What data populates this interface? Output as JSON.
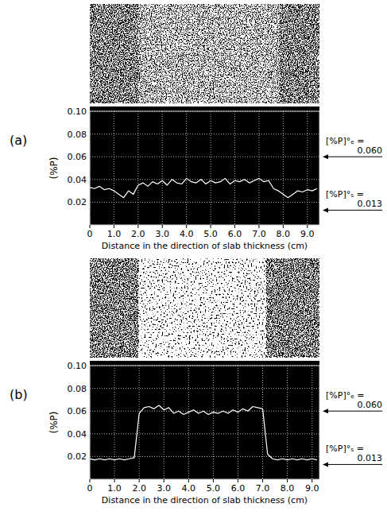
{
  "chart_data": [
    {
      "type": "line",
      "title": "(a)",
      "color": "#ffffff",
      "grid": true,
      "x_label": "Distance in the direction of slab thickness (cm)",
      "y_label": "(%P)",
      "xlim": [
        0,
        9.5
      ],
      "ylim": [
        0,
        0.1
      ],
      "xticks": [
        0,
        {
          "value": 1,
          "label": "1.0"
        },
        {
          "value": 2,
          "label": "2.0"
        },
        {
          "value": 3,
          "label": "3.0"
        },
        {
          "value": 4,
          "label": "4.0"
        },
        {
          "value": 5,
          "label": "5.0"
        },
        {
          "value": 6,
          "label": "6.0"
        },
        {
          "value": 7,
          "label": "7.0"
        },
        {
          "value": 8,
          "label": "8.0"
        },
        {
          "value": 9,
          "label": "9.0"
        }
      ],
      "yticks": [
        0.02,
        0.04,
        0.06,
        0.08,
        {
          "value": 0.1,
          "label": "0.10"
        }
      ],
      "x": [
        0,
        0.2,
        0.4,
        0.6,
        0.8,
        1.0,
        1.2,
        1.4,
        1.6,
        1.8,
        2.0,
        2.2,
        2.4,
        2.6,
        2.8,
        3.0,
        3.2,
        3.4,
        3.6,
        3.8,
        4.0,
        4.2,
        4.4,
        4.6,
        4.8,
        5.0,
        5.2,
        5.4,
        5.6,
        5.8,
        6.0,
        6.2,
        6.4,
        6.6,
        6.8,
        7.0,
        7.2,
        7.4,
        7.6,
        7.8,
        8.0,
        8.2,
        8.4,
        8.6,
        8.8,
        9.0,
        9.2,
        9.4
      ],
      "values": [
        0.033,
        0.032,
        0.034,
        0.031,
        0.032,
        0.03,
        0.027,
        0.024,
        0.03,
        0.027,
        0.035,
        0.037,
        0.034,
        0.038,
        0.036,
        0.039,
        0.035,
        0.04,
        0.037,
        0.036,
        0.041,
        0.038,
        0.037,
        0.04,
        0.036,
        0.039,
        0.037,
        0.038,
        0.041,
        0.036,
        0.039,
        0.038,
        0.04,
        0.037,
        0.039,
        0.041,
        0.038,
        0.039,
        0.032,
        0.03,
        0.027,
        0.024,
        0.027,
        0.03,
        0.029,
        0.031,
        0.03,
        0.032
      ],
      "annotations": [
        {
          "text": "[%P]°ₑ =",
          "value": 0.06,
          "value_label": "0.060"
        },
        {
          "text": "[%P]°ₛ =",
          "value": 0.013,
          "value_label": "0.013"
        }
      ]
    },
    {
      "type": "line",
      "title": "(b)",
      "color": "#ffffff",
      "grid": true,
      "x_label": "Distance in the direction of slab thickness (cm)",
      "y_label": "(%P)",
      "xlim": [
        0,
        9.3
      ],
      "ylim": [
        0,
        0.1
      ],
      "xticks": [
        0,
        {
          "value": 1,
          "label": "1.0"
        },
        {
          "value": 2,
          "label": "2.0"
        },
        {
          "value": 3,
          "label": "3.0"
        },
        {
          "value": 4,
          "label": "4.0"
        },
        {
          "value": 5,
          "label": "5.0"
        },
        {
          "value": 6,
          "label": "6.0"
        },
        {
          "value": 7,
          "label": "7.0"
        },
        {
          "value": 8,
          "label": "8.0"
        },
        {
          "value": 9,
          "label": "9.0"
        }
      ],
      "yticks": [
        0.02,
        0.04,
        0.06,
        0.08,
        {
          "value": 0.1,
          "label": "0.10"
        }
      ],
      "x": [
        0,
        0.2,
        0.4,
        0.6,
        0.8,
        1.0,
        1.2,
        1.4,
        1.6,
        1.8,
        2.0,
        2.2,
        2.4,
        2.6,
        2.8,
        3.0,
        3.2,
        3.4,
        3.6,
        3.8,
        4.0,
        4.2,
        4.4,
        4.6,
        4.8,
        5.0,
        5.2,
        5.4,
        5.6,
        5.8,
        6.0,
        6.2,
        6.4,
        6.6,
        6.8,
        7.0,
        7.2,
        7.4,
        7.6,
        7.8,
        8.0,
        8.2,
        8.4,
        8.6,
        8.8,
        9.0,
        9.2
      ],
      "values": [
        0.018,
        0.017,
        0.018,
        0.017,
        0.018,
        0.017,
        0.018,
        0.017,
        0.018,
        0.019,
        0.058,
        0.063,
        0.064,
        0.062,
        0.065,
        0.061,
        0.063,
        0.058,
        0.06,
        0.057,
        0.059,
        0.061,
        0.058,
        0.06,
        0.057,
        0.059,
        0.058,
        0.06,
        0.058,
        0.061,
        0.059,
        0.062,
        0.06,
        0.064,
        0.063,
        0.062,
        0.022,
        0.018,
        0.017,
        0.018,
        0.017,
        0.018,
        0.017,
        0.018,
        0.017,
        0.018,
        0.017
      ],
      "annotations": [
        {
          "text": "[%P]°ₑ =",
          "value": 0.06,
          "value_label": "0.060"
        },
        {
          "text": "[%P]°ₛ =",
          "value": 0.013,
          "value_label": "0.013"
        }
      ]
    }
  ]
}
